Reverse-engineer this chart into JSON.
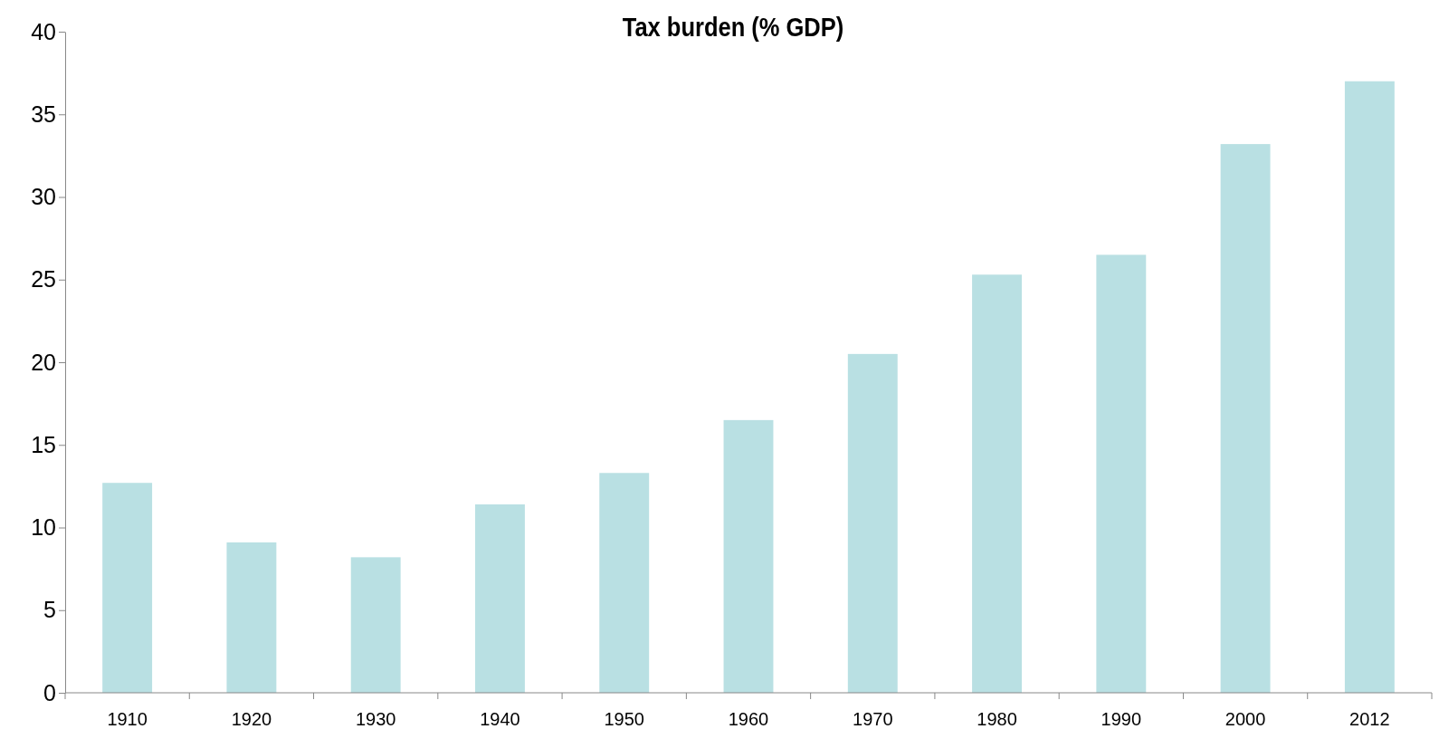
{
  "chart_data": {
    "type": "bar",
    "title": "Tax burden (% GDP)",
    "categories": [
      "1910",
      "1920",
      "1930",
      "1940",
      "1950",
      "1960",
      "1970",
      "1980",
      "1990",
      "2000",
      "2012"
    ],
    "values": [
      12.7,
      9.1,
      8.2,
      11.4,
      13.3,
      16.5,
      20.5,
      25.3,
      26.5,
      33.2,
      37.0
    ],
    "color": "#b9e0e3",
    "ylim": [
      0,
      40
    ],
    "yticks": [
      0,
      5,
      10,
      15,
      20,
      25,
      30,
      35,
      40
    ],
    "grid": false
  }
}
